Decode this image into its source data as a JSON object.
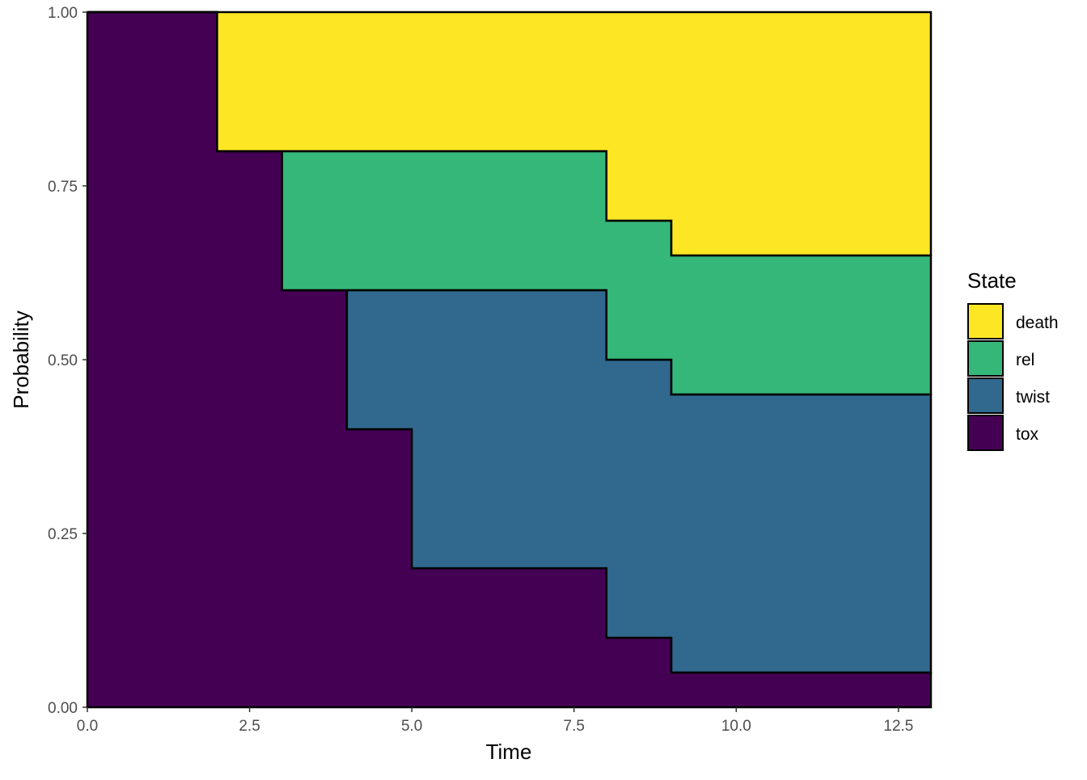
{
  "chart_data": {
    "type": "area",
    "subtype": "stacked-step",
    "title": "",
    "xlabel": "Time",
    "ylabel": "Probability",
    "xlim": [
      0,
      13
    ],
    "ylim": [
      0,
      1
    ],
    "x_ticks": [
      0,
      2.5,
      5,
      7.5,
      10,
      12.5
    ],
    "x_tick_labels": [
      "0.0",
      "2.5",
      "5.0",
      "7.5",
      "10.0",
      "12.5"
    ],
    "y_ticks": [
      0,
      0.25,
      0.5,
      0.75,
      1
    ],
    "y_tick_labels": [
      "0.00",
      "0.25",
      "0.50",
      "0.75",
      "1.00"
    ],
    "grid": false,
    "legend": {
      "title": "State",
      "placement": "right"
    },
    "x": [
      0,
      2,
      3,
      4,
      5,
      8,
      9,
      13
    ],
    "stack_order_bottom_to_top": [
      "tox",
      "twist",
      "rel",
      "death"
    ],
    "series": [
      {
        "name": "death",
        "color": "#FDE725",
        "values": [
          0,
          0.2,
          0.2,
          0.2,
          0.2,
          0.3,
          0.35,
          0.35
        ]
      },
      {
        "name": "rel",
        "color": "#35B779",
        "values": [
          0,
          0,
          0.2,
          0.2,
          0.2,
          0.2,
          0.2,
          0.2
        ]
      },
      {
        "name": "twist",
        "color": "#31688E",
        "values": [
          0,
          0,
          0,
          0.2,
          0.4,
          0.4,
          0.4,
          0.4
        ]
      },
      {
        "name": "tox",
        "color": "#440154",
        "values": [
          1,
          0.8,
          0.6,
          0.4,
          0.2,
          0.1,
          0.05,
          0.05
        ]
      }
    ]
  }
}
